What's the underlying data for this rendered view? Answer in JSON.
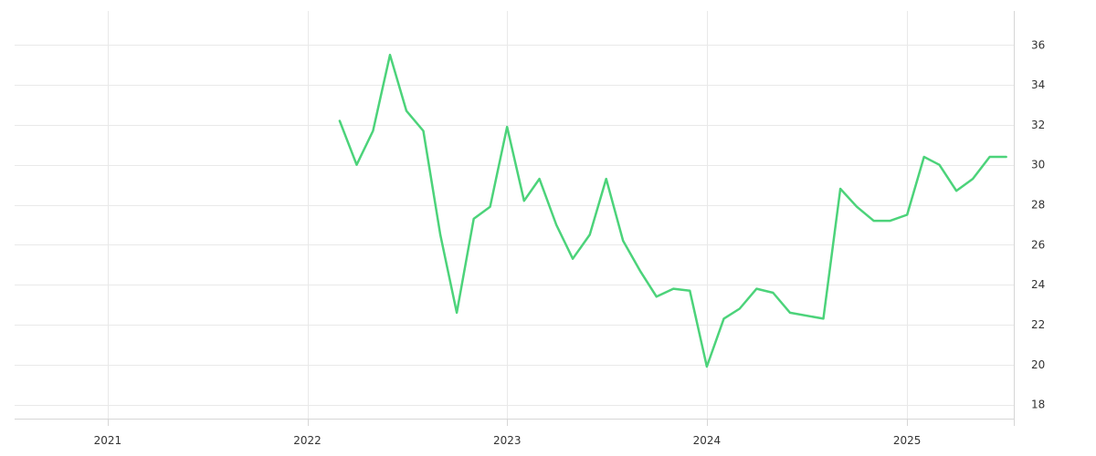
{
  "chart_data": {
    "type": "line",
    "title": "",
    "xlabel": "",
    "ylabel": "",
    "grid": true,
    "legend": "none",
    "x_axis": {
      "type": "date",
      "range": [
        "2020-07-15",
        "2025-07-15"
      ],
      "ticks": [
        "2021-01-01",
        "2022-01-01",
        "2023-01-01",
        "2024-01-01",
        "2025-01-01"
      ],
      "tick_labels": [
        "2021",
        "2022",
        "2023",
        "2024",
        "2025"
      ]
    },
    "y_axis": {
      "position": "right",
      "range": [
        17.3,
        37.7
      ],
      "ticks": [
        18,
        20,
        22,
        24,
        26,
        28,
        30,
        32,
        34,
        36
      ],
      "tick_labels": [
        "18",
        "20",
        "22",
        "24",
        "26",
        "28",
        "30",
        "32",
        "34",
        "36"
      ]
    },
    "series": [
      {
        "color": "#4cd37a",
        "points": [
          {
            "x": "2022-03-01",
            "y": 32.2
          },
          {
            "x": "2022-04-01",
            "y": 30.0
          },
          {
            "x": "2022-05-01",
            "y": 31.7
          },
          {
            "x": "2022-06-01",
            "y": 35.5
          },
          {
            "x": "2022-07-01",
            "y": 32.7
          },
          {
            "x": "2022-08-01",
            "y": 31.7
          },
          {
            "x": "2022-09-01",
            "y": 26.5
          },
          {
            "x": "2022-10-01",
            "y": 22.6
          },
          {
            "x": "2022-11-01",
            "y": 27.3
          },
          {
            "x": "2022-12-01",
            "y": 27.9
          },
          {
            "x": "2023-01-01",
            "y": 31.9
          },
          {
            "x": "2023-02-01",
            "y": 28.2
          },
          {
            "x": "2023-03-01",
            "y": 29.3
          },
          {
            "x": "2023-04-01",
            "y": 27.0
          },
          {
            "x": "2023-05-01",
            "y": 25.3
          },
          {
            "x": "2023-06-01",
            "y": 26.5
          },
          {
            "x": "2023-07-01",
            "y": 29.3
          },
          {
            "x": "2023-08-01",
            "y": 26.2
          },
          {
            "x": "2023-09-01",
            "y": 24.7
          },
          {
            "x": "2023-10-01",
            "y": 23.4
          },
          {
            "x": "2023-11-01",
            "y": 23.8
          },
          {
            "x": "2023-12-01",
            "y": 23.7
          },
          {
            "x": "2024-01-01",
            "y": 19.9
          },
          {
            "x": "2024-02-01",
            "y": 22.3
          },
          {
            "x": "2024-03-01",
            "y": 22.8
          },
          {
            "x": "2024-04-01",
            "y": 23.8
          },
          {
            "x": "2024-05-01",
            "y": 23.6
          },
          {
            "x": "2024-06-01",
            "y": 22.6
          },
          {
            "x": "2024-08-01",
            "y": 22.3
          },
          {
            "x": "2024-09-01",
            "y": 28.8
          },
          {
            "x": "2024-10-01",
            "y": 27.9
          },
          {
            "x": "2024-11-01",
            "y": 27.2
          },
          {
            "x": "2024-12-01",
            "y": 27.2
          },
          {
            "x": "2025-01-01",
            "y": 27.5
          },
          {
            "x": "2025-02-01",
            "y": 30.4
          },
          {
            "x": "2025-03-01",
            "y": 30.0
          },
          {
            "x": "2025-04-01",
            "y": 28.7
          },
          {
            "x": "2025-05-01",
            "y": 29.3
          },
          {
            "x": "2025-06-01",
            "y": 30.4
          },
          {
            "x": "2025-07-01",
            "y": 30.4
          }
        ]
      }
    ]
  }
}
